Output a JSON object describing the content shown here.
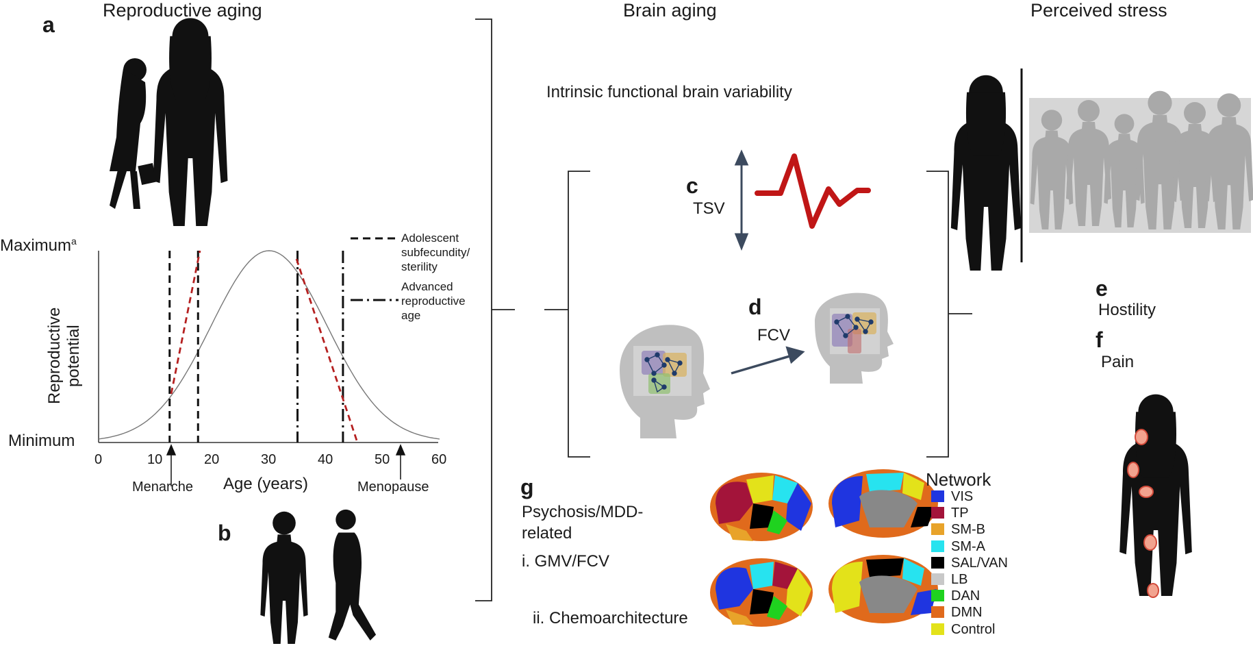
{
  "headers": {
    "reproductive": "Reproductive aging",
    "brain": "Brain aging",
    "stress": "Perceived stress"
  },
  "panel_letters": {
    "a": "a",
    "b": "b",
    "c": "c",
    "d": "d",
    "e": "e",
    "f": "f",
    "g": "g"
  },
  "brain": {
    "subtitle": "Intrinsic functional brain variability",
    "tsv": "TSV",
    "fcv": "FCV"
  },
  "stress": {
    "hostility": "Hostility",
    "pain": "Pain"
  },
  "chart": {
    "y_max": "Maximum",
    "y_max_sup": "a",
    "y_min": "Minimum",
    "y_label_1": "Reproductive",
    "y_label_2": "potential",
    "x_label": "Age (years)",
    "ticks": [
      "0",
      "10",
      "20",
      "30",
      "40",
      "50",
      "60"
    ],
    "menarche": "Menarche",
    "menopause": "Menopause",
    "legend": [
      {
        "lines": [
          "Adolescent",
          "subfecundity/",
          "sterility"
        ],
        "style": "dashed"
      },
      {
        "lines": [
          "Advanced",
          "reproductive",
          "age"
        ],
        "style": "dash-dot"
      }
    ]
  },
  "chart_data": {
    "type": "line",
    "title": "",
    "xlabel": "Age (years)",
    "ylabel": "Reproductive potential",
    "xlim": [
      0,
      60
    ],
    "ylim": [
      "Minimum",
      "Maximum"
    ],
    "series": [
      {
        "name": "",
        "x": [
          0,
          5,
          10,
          15,
          20,
          25,
          30,
          35,
          40,
          45,
          50,
          55,
          60
        ],
        "y": [
          0.01,
          0.05,
          0.16,
          0.38,
          0.66,
          0.9,
          1.0,
          0.9,
          0.66,
          0.38,
          0.16,
          0.05,
          0.01
        ]
      }
    ],
    "vertical_lines": [
      {
        "x": 12.5,
        "style": "dashed"
      },
      {
        "x": 17.5,
        "style": "dashed"
      },
      {
        "x": 35,
        "style": "dash-dot"
      },
      {
        "x": 43,
        "style": "dash-dot"
      }
    ],
    "annotations": [
      {
        "x": 12.5,
        "text": "Menarche"
      },
      {
        "x": 52,
        "text": "Menopause"
      }
    ],
    "legend": [
      "Adolescent subfecundity/ sterility",
      "Advanced reproductive age"
    ],
    "grid": false
  },
  "g_panel": {
    "title_1": "Psychosis/MDD-",
    "title_2": "related",
    "i": "i. GMV/FCV",
    "ii": "ii. Chemoarchitecture"
  },
  "network_legend": {
    "title": "Network",
    "items": [
      {
        "label": "VIS",
        "color": "#1f35e0"
      },
      {
        "label": "TP",
        "color": "#a3143a"
      },
      {
        "label": "SM-B",
        "color": "#e8a32a"
      },
      {
        "label": "SM-A",
        "color": "#27e3ef"
      },
      {
        "label": "SAL/VAN",
        "color": "#000000"
      },
      {
        "label": "LB",
        "color": "#c8c8c8"
      },
      {
        "label": "DAN",
        "color": "#1fd21f"
      },
      {
        "label": "DMN",
        "color": "#e06a1c"
      },
      {
        "label": "Control",
        "color": "#e3e21a"
      }
    ]
  }
}
